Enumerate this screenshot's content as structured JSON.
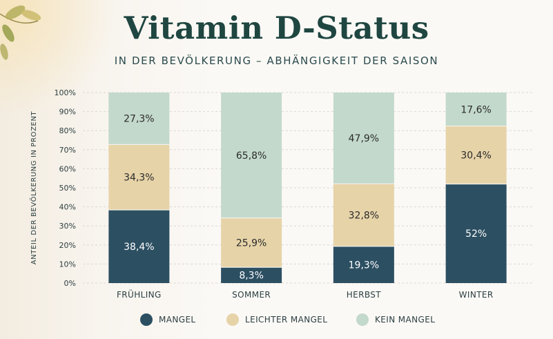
{
  "header": {
    "title": "Vitamin D-Status",
    "subtitle": "IN DER BEVÖLKERUNG – ABHÄNGIGKEIT DER SAISON"
  },
  "chart_data": {
    "type": "bar",
    "stacked": true,
    "ylabel": "ANTEIL DER BEVÖLKERUNG IN PROZENT",
    "ylim": [
      0,
      100
    ],
    "yticks": [
      "0%",
      "10%",
      "20%",
      "30%",
      "40%",
      "50%",
      "60%",
      "70%",
      "80%",
      "90%",
      "100%"
    ],
    "grid": true,
    "legend_position": "bottom",
    "categories": [
      "FRÜHLING",
      "SOMMER",
      "HERBST",
      "WINTER"
    ],
    "series": [
      {
        "name": "MANGEL",
        "color": "#2c4f62",
        "values": [
          38.4,
          8.3,
          19.3,
          52
        ],
        "labels": [
          "38,4%",
          "8,3%",
          "19,3%",
          "52%"
        ],
        "label_color": "#ffffff"
      },
      {
        "name": "LEICHTER MANGEL",
        "color": "#e6d3a8",
        "values": [
          34.3,
          25.9,
          32.8,
          30.4
        ],
        "labels": [
          "34,3%",
          "25,9%",
          "32,8%",
          "30,4%"
        ],
        "label_color": "#2b2b2b"
      },
      {
        "name": "KEIN MANGEL",
        "color": "#c3d9cc",
        "values": [
          27.3,
          65.8,
          47.9,
          17.6
        ],
        "labels": [
          "27,3%",
          "65,8%",
          "47,9%",
          "17,6%"
        ],
        "label_color": "#2b2b2b"
      }
    ]
  }
}
